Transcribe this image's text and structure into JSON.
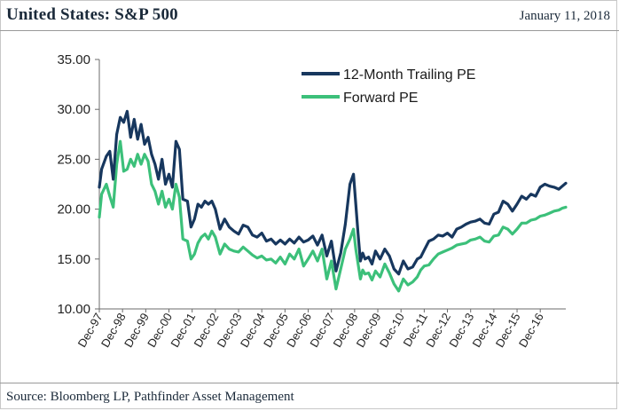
{
  "header": {
    "title": "United States: S&P 500",
    "date": "January 11, 2018"
  },
  "footer": {
    "source": "Source: Bloomberg LP, Pathfinder Asset Management"
  },
  "colors": {
    "trailing": "#17375e",
    "forward": "#3cc07a",
    "axis": "#6b6b6b"
  },
  "chart_data": {
    "type": "line",
    "title": "United States: S&P 500",
    "xlabel": "",
    "ylabel": "",
    "ylim": [
      10,
      35
    ],
    "yticks": [
      "10.00",
      "15.00",
      "20.00",
      "25.00",
      "30.00",
      "35.00"
    ],
    "xlim": [
      1997.9,
      2018.0
    ],
    "categories": [
      "Dec-97",
      "Dec-98",
      "Dec-99",
      "Dec-00",
      "Dec-01",
      "Dec-02",
      "Dec-03",
      "Dec-04",
      "Dec-05",
      "Dec-06",
      "Dec-07",
      "Dec-08",
      "Dec-09",
      "Dec-10",
      "Dec-11",
      "Dec-12",
      "Dec-13",
      "Dec-14",
      "Dec-15",
      "Dec-16"
    ],
    "legend_position": "top-right",
    "series": [
      {
        "name": "12-Month Trailing PE",
        "color_key": "trailing",
        "x": [
          1997.9,
          1998.0,
          1998.2,
          1998.35,
          1998.5,
          1998.65,
          1998.8,
          1998.95,
          1999.1,
          1999.25,
          1999.4,
          1999.55,
          1999.7,
          1999.85,
          2000.0,
          2000.15,
          2000.3,
          2000.45,
          2000.6,
          2000.75,
          2000.9,
          2001.05,
          2001.2,
          2001.35,
          2001.5,
          2001.7,
          2001.85,
          2002.0,
          2002.15,
          2002.3,
          2002.45,
          2002.6,
          2002.75,
          2002.9,
          2003.1,
          2003.3,
          2003.5,
          2003.7,
          2003.9,
          2004.1,
          2004.3,
          2004.5,
          2004.7,
          2004.9,
          2005.1,
          2005.3,
          2005.5,
          2005.7,
          2005.9,
          2006.1,
          2006.3,
          2006.5,
          2006.7,
          2006.9,
          2007.1,
          2007.3,
          2007.5,
          2007.7,
          2007.9,
          2008.1,
          2008.3,
          2008.5,
          2008.7,
          2008.85,
          2008.95,
          2009.05,
          2009.15,
          2009.25,
          2009.35,
          2009.5,
          2009.65,
          2009.8,
          2010.0,
          2010.2,
          2010.4,
          2010.6,
          2010.8,
          2011.0,
          2011.2,
          2011.4,
          2011.6,
          2011.75,
          2011.9,
          2012.1,
          2012.3,
          2012.5,
          2012.7,
          2012.9,
          2013.1,
          2013.3,
          2013.5,
          2013.7,
          2013.9,
          2014.1,
          2014.3,
          2014.5,
          2014.7,
          2014.9,
          2015.1,
          2015.3,
          2015.5,
          2015.7,
          2015.9,
          2016.1,
          2016.3,
          2016.5,
          2016.7,
          2016.9,
          2017.1,
          2017.3,
          2017.5,
          2017.7,
          2017.85,
          2018.0
        ],
        "values": [
          22.2,
          24.0,
          25.3,
          25.8,
          23.0,
          27.5,
          29.2,
          28.7,
          29.8,
          27.2,
          29.0,
          27.0,
          28.5,
          26.5,
          27.2,
          25.5,
          24.5,
          23.0,
          25.0,
          22.5,
          23.5,
          22.2,
          26.8,
          26.0,
          21.0,
          20.8,
          18.2,
          19.0,
          20.5,
          20.2,
          20.8,
          20.5,
          20.8,
          20.0,
          18.0,
          19.0,
          18.2,
          17.8,
          17.5,
          18.4,
          18.2,
          17.4,
          17.2,
          17.6,
          16.8,
          17.0,
          16.5,
          16.9,
          16.5,
          17.0,
          16.6,
          17.2,
          16.7,
          16.9,
          17.3,
          16.4,
          17.4,
          15.3,
          16.8,
          13.8,
          15.6,
          18.5,
          22.5,
          23.5,
          20.5,
          17.5,
          14.8,
          15.6,
          15.0,
          15.2,
          14.5,
          15.8,
          15.0,
          16.0,
          15.3,
          14.0,
          13.5,
          14.8,
          14.0,
          14.2,
          15.0,
          15.2,
          15.9,
          16.8,
          17.0,
          17.4,
          17.3,
          17.6,
          17.2,
          18.0,
          18.2,
          18.5,
          18.7,
          18.8,
          19.0,
          18.6,
          18.5,
          19.5,
          19.7,
          20.8,
          20.5,
          19.8,
          20.5,
          21.3,
          21.0,
          21.5,
          21.3,
          22.2,
          22.5,
          22.3,
          22.2,
          22.0,
          22.3,
          22.6
        ]
      },
      {
        "name": "Forward PE",
        "color_key": "forward",
        "x": [
          1997.9,
          1998.0,
          1998.2,
          1998.35,
          1998.5,
          1998.65,
          1998.8,
          1998.95,
          1999.1,
          1999.25,
          1999.4,
          1999.55,
          1999.7,
          1999.85,
          2000.0,
          2000.15,
          2000.3,
          2000.45,
          2000.6,
          2000.75,
          2000.9,
          2001.05,
          2001.2,
          2001.35,
          2001.5,
          2001.7,
          2001.85,
          2002.0,
          2002.15,
          2002.3,
          2002.45,
          2002.6,
          2002.75,
          2002.9,
          2003.1,
          2003.3,
          2003.5,
          2003.7,
          2003.9,
          2004.1,
          2004.3,
          2004.5,
          2004.7,
          2004.9,
          2005.1,
          2005.3,
          2005.5,
          2005.7,
          2005.9,
          2006.1,
          2006.3,
          2006.5,
          2006.7,
          2006.9,
          2007.1,
          2007.3,
          2007.5,
          2007.7,
          2007.9,
          2008.1,
          2008.3,
          2008.5,
          2008.7,
          2008.85,
          2008.95,
          2009.05,
          2009.15,
          2009.25,
          2009.35,
          2009.5,
          2009.65,
          2009.8,
          2010.0,
          2010.2,
          2010.4,
          2010.6,
          2010.8,
          2011.0,
          2011.2,
          2011.4,
          2011.6,
          2011.75,
          2011.9,
          2012.1,
          2012.3,
          2012.5,
          2012.7,
          2012.9,
          2013.1,
          2013.3,
          2013.5,
          2013.7,
          2013.9,
          2014.1,
          2014.3,
          2014.5,
          2014.7,
          2014.9,
          2015.1,
          2015.3,
          2015.5,
          2015.7,
          2015.9,
          2016.1,
          2016.3,
          2016.5,
          2016.7,
          2016.9,
          2017.1,
          2017.3,
          2017.5,
          2017.7,
          2017.85,
          2018.0
        ],
        "values": [
          19.2,
          21.5,
          22.5,
          21.3,
          20.2,
          24.5,
          26.8,
          23.8,
          24.0,
          25.0,
          24.3,
          25.5,
          24.5,
          25.5,
          24.8,
          22.5,
          21.8,
          20.5,
          21.8,
          20.2,
          21.0,
          20.0,
          22.5,
          21.2,
          17.0,
          16.8,
          15.0,
          15.5,
          16.6,
          17.2,
          17.5,
          17.0,
          17.8,
          17.2,
          15.5,
          16.5,
          16.0,
          15.8,
          15.7,
          16.2,
          15.8,
          15.4,
          15.1,
          15.3,
          14.9,
          15.0,
          14.6,
          15.2,
          14.5,
          15.5,
          15.0,
          16.0,
          14.3,
          15.0,
          15.8,
          14.8,
          16.0,
          13.0,
          14.8,
          12.0,
          14.0,
          16.0,
          17.0,
          18.0,
          16.0,
          14.5,
          13.0,
          13.9,
          13.5,
          13.6,
          12.9,
          13.8,
          13.2,
          14.5,
          13.6,
          12.5,
          11.8,
          13.0,
          12.4,
          12.7,
          13.2,
          13.9,
          14.3,
          14.4,
          15.0,
          15.5,
          15.7,
          15.9,
          16.1,
          16.4,
          16.5,
          16.6,
          16.9,
          17.0,
          17.2,
          16.8,
          16.7,
          17.3,
          17.4,
          18.2,
          18.0,
          17.5,
          18.0,
          18.6,
          18.6,
          18.9,
          19.0,
          19.3,
          19.4,
          19.6,
          19.8,
          19.9,
          20.1,
          20.2
        ]
      }
    ]
  }
}
